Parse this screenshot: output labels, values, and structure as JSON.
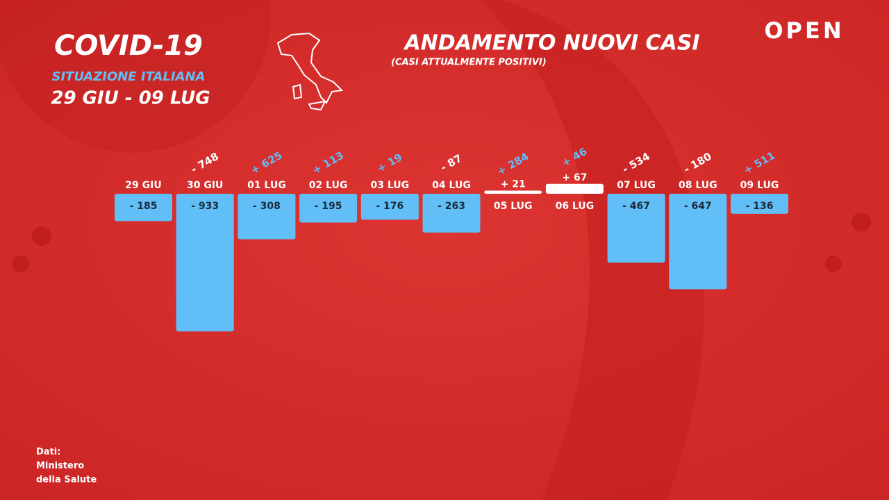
{
  "header": {
    "title": "COVID-19",
    "subtitle": "SITUAZIONE ITALIANA",
    "period": "29 GIU - 09 LUG"
  },
  "brand": "OPEN",
  "source": [
    "Dati:",
    "Ministero",
    "della Salute"
  ],
  "chart_data": {
    "type": "bar",
    "title": "ANDAMENTO NUOVI CASI",
    "subtitle": "(CASI ATTUALMENTE POSITIVI)",
    "categories": [
      "29 GIU",
      "30 GIU",
      "01 LUG",
      "02 LUG",
      "03 LUG",
      "04 LUG",
      "05 LUG",
      "06 LUG",
      "07 LUG",
      "08 LUG",
      "09 LUG"
    ],
    "values": [
      -185,
      -933,
      -308,
      -195,
      -176,
      -263,
      21,
      67,
      -467,
      -647,
      -136
    ],
    "value_labels": [
      "- 185",
      "- 933",
      "- 308",
      "- 195",
      "- 176",
      "- 263",
      "+ 21",
      "+ 67",
      "- 467",
      "- 647",
      "- 136"
    ],
    "color": "#62bef7",
    "positive_color": "#ffffff",
    "changes": {
      "values": [
        null,
        -748,
        625,
        113,
        19,
        -87,
        284,
        46,
        -534,
        -180,
        511
      ],
      "value_labels": [
        null,
        "- 748",
        "+ 625",
        "+ 113",
        "+ 19",
        "- 87",
        "+ 284",
        "+ 46",
        "- 534",
        "- 180",
        "+ 511"
      ],
      "increase_color": "#62bef7",
      "decrease_color": "#ffffff"
    }
  }
}
